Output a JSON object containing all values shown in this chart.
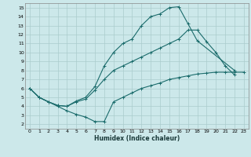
{
  "xlabel": "Humidex (Indice chaleur)",
  "ylabel": "",
  "xlim": [
    -0.5,
    23.5
  ],
  "ylim": [
    1.5,
    15.5
  ],
  "xticks": [
    0,
    1,
    2,
    3,
    4,
    5,
    6,
    7,
    8,
    9,
    10,
    11,
    12,
    13,
    14,
    15,
    16,
    17,
    18,
    19,
    20,
    21,
    22,
    23
  ],
  "yticks": [
    2,
    3,
    4,
    5,
    6,
    7,
    8,
    9,
    10,
    11,
    12,
    13,
    14,
    15
  ],
  "bg_color": "#cce8ea",
  "line_color": "#1a6b6b",
  "grid_color": "#aacccc",
  "line1_x": [
    0,
    1,
    2,
    3,
    4,
    5,
    6,
    7,
    8,
    9,
    10,
    11,
    12,
    13,
    14,
    15,
    16,
    17,
    18,
    22
  ],
  "line1_y": [
    6.0,
    5.0,
    4.5,
    4.1,
    4.0,
    4.6,
    5.0,
    6.2,
    8.5,
    10.0,
    11.0,
    11.5,
    13.0,
    14.0,
    14.3,
    15.0,
    15.1,
    13.2,
    11.3,
    8.0
  ],
  "line2_x": [
    0,
    1,
    2,
    3,
    4,
    5,
    6,
    7,
    8,
    9,
    10,
    11,
    12,
    13,
    14,
    15,
    16,
    17,
    18,
    19,
    20,
    21,
    22
  ],
  "line2_y": [
    6.0,
    5.0,
    4.5,
    4.1,
    4.0,
    4.5,
    4.8,
    5.8,
    7.0,
    8.0,
    8.5,
    9.0,
    9.5,
    10.0,
    10.5,
    11.0,
    11.5,
    12.5,
    12.5,
    11.2,
    10.0,
    8.5,
    7.5
  ],
  "line3_x": [
    0,
    1,
    2,
    3,
    4,
    5,
    6,
    7,
    8,
    9,
    10,
    11,
    12,
    13,
    14,
    15,
    16,
    17,
    18,
    19,
    20,
    21,
    22,
    23
  ],
  "line3_y": [
    6.0,
    5.0,
    4.5,
    4.0,
    3.5,
    3.1,
    2.8,
    2.3,
    2.3,
    4.5,
    5.0,
    5.5,
    6.0,
    6.3,
    6.6,
    7.0,
    7.2,
    7.4,
    7.6,
    7.7,
    7.8,
    7.8,
    7.8,
    7.8
  ]
}
